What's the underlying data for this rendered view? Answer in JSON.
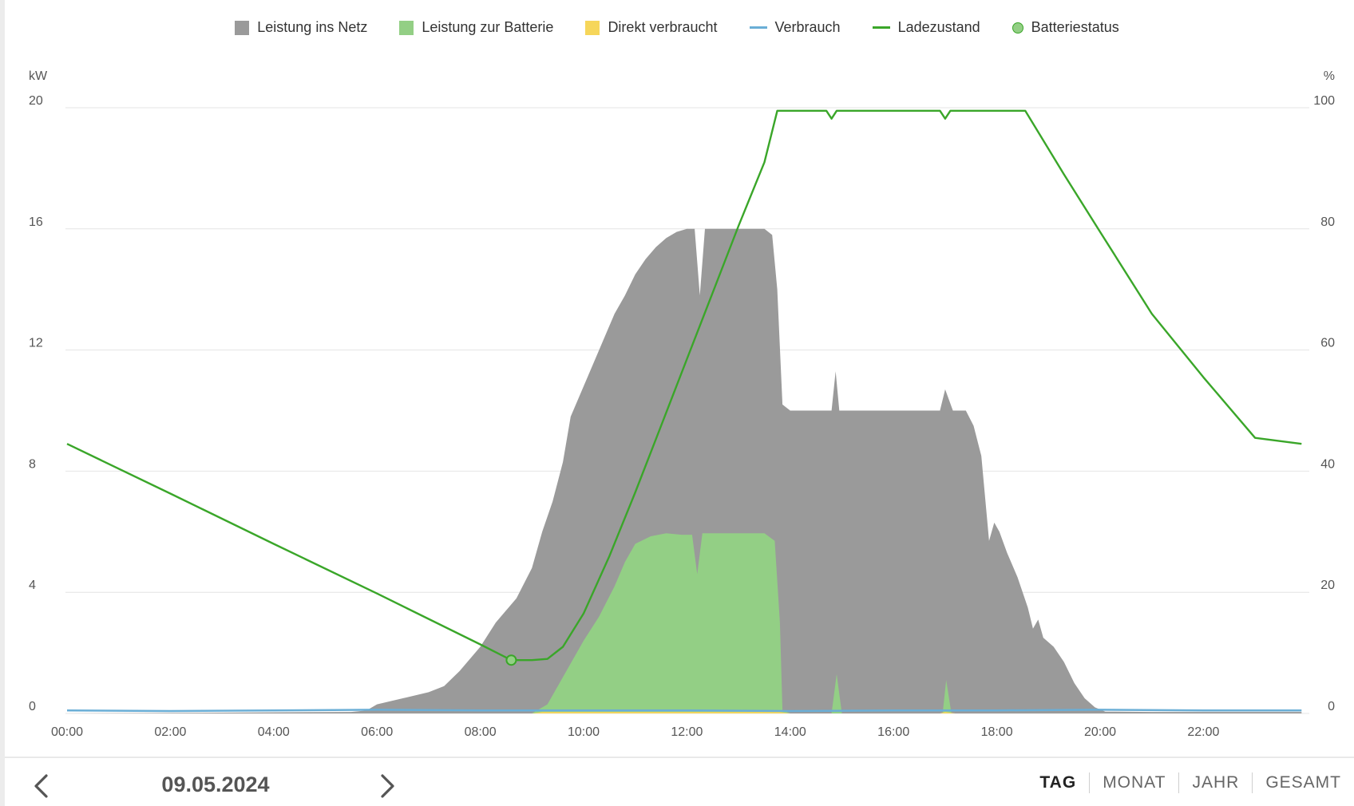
{
  "colors": {
    "grid_feed": "#9a9a9a",
    "battery_charge": "#93cf85",
    "self_consumed": "#f6d65a",
    "consumption": "#6aaed6",
    "state_of_charge": "#3aa629",
    "battery_status": "#93cf85",
    "gridline": "#e4e4e4"
  },
  "legend": [
    {
      "label": "Leistung ins Netz",
      "kind": "box",
      "color": "#9a9a9a"
    },
    {
      "label": "Leistung zur Batterie",
      "kind": "box",
      "color": "#93cf85"
    },
    {
      "label": "Direkt verbraucht",
      "kind": "box",
      "color": "#f6d65a"
    },
    {
      "label": "Verbrauch",
      "kind": "line",
      "color": "#6aaed6"
    },
    {
      "label": "Ladezustand",
      "kind": "line",
      "color": "#3aa629"
    },
    {
      "label": "Batteriestatus",
      "kind": "dot",
      "color": "#93cf85"
    }
  ],
  "chart_data": {
    "type": "area",
    "x_unit": "hours",
    "x_ticks": [
      "00:00",
      "02:00",
      "04:00",
      "06:00",
      "08:00",
      "10:00",
      "12:00",
      "14:00",
      "16:00",
      "18:00",
      "20:00",
      "22:00"
    ],
    "y_left": {
      "label": "kW",
      "range": [
        0,
        20
      ],
      "ticks": [
        "0",
        "4",
        "8",
        "12",
        "16",
        "20"
      ]
    },
    "y_right": {
      "label": "%",
      "range": [
        0,
        100
      ],
      "ticks": [
        "0",
        "20",
        "40",
        "60",
        "80",
        "100"
      ]
    },
    "grid": true,
    "legend_position": "top-center",
    "series": [
      {
        "name": "Leistung ins Netz",
        "axis": "left",
        "kind": "area",
        "points": [
          [
            0,
            0
          ],
          [
            5.5,
            0.05
          ],
          [
            5.8,
            0.1
          ],
          [
            6.0,
            0.3
          ],
          [
            6.5,
            0.5
          ],
          [
            7.0,
            0.7
          ],
          [
            7.3,
            0.9
          ],
          [
            7.6,
            1.4
          ],
          [
            8.0,
            2.2
          ],
          [
            8.3,
            3.0
          ],
          [
            8.7,
            3.8
          ],
          [
            9.0,
            4.8
          ],
          [
            9.2,
            6.0
          ],
          [
            9.4,
            7.0
          ],
          [
            9.6,
            8.3
          ],
          [
            9.75,
            9.8
          ],
          [
            10.0,
            10.8
          ],
          [
            10.3,
            12.0
          ],
          [
            10.6,
            13.2
          ],
          [
            10.8,
            13.8
          ],
          [
            11.0,
            14.5
          ],
          [
            11.2,
            15.0
          ],
          [
            11.4,
            15.4
          ],
          [
            11.6,
            15.7
          ],
          [
            11.8,
            15.9
          ],
          [
            12.0,
            16.0
          ],
          [
            12.15,
            16.0
          ],
          [
            12.25,
            13.8
          ],
          [
            12.35,
            16.0
          ],
          [
            12.8,
            16.0
          ],
          [
            13.5,
            16.0
          ],
          [
            13.65,
            15.8
          ],
          [
            13.75,
            14.0
          ],
          [
            13.85,
            10.2
          ],
          [
            14.0,
            10.0
          ],
          [
            14.8,
            10.0
          ],
          [
            14.88,
            11.3
          ],
          [
            14.95,
            10.0
          ],
          [
            16.9,
            10.0
          ],
          [
            17.0,
            10.7
          ],
          [
            17.15,
            10.0
          ],
          [
            17.4,
            10.0
          ],
          [
            17.55,
            9.5
          ],
          [
            17.7,
            8.5
          ],
          [
            17.85,
            5.7
          ],
          [
            17.95,
            6.3
          ],
          [
            18.05,
            6.0
          ],
          [
            18.2,
            5.3
          ],
          [
            18.4,
            4.5
          ],
          [
            18.6,
            3.5
          ],
          [
            18.7,
            2.8
          ],
          [
            18.8,
            3.1
          ],
          [
            18.9,
            2.5
          ],
          [
            19.1,
            2.2
          ],
          [
            19.3,
            1.7
          ],
          [
            19.5,
            1.0
          ],
          [
            19.7,
            0.5
          ],
          [
            19.9,
            0.2
          ],
          [
            20.1,
            0.06
          ],
          [
            21,
            0.05
          ],
          [
            23.9,
            0.05
          ]
        ]
      },
      {
        "name": "Leistung zur Batterie",
        "axis": "left",
        "kind": "area",
        "points": [
          [
            0,
            0
          ],
          [
            9.0,
            0
          ],
          [
            9.3,
            0.3
          ],
          [
            9.6,
            1.2
          ],
          [
            10.0,
            2.4
          ],
          [
            10.3,
            3.2
          ],
          [
            10.6,
            4.2
          ],
          [
            10.8,
            5.0
          ],
          [
            11.0,
            5.6
          ],
          [
            11.3,
            5.85
          ],
          [
            11.6,
            5.95
          ],
          [
            11.9,
            5.9
          ],
          [
            12.1,
            5.9
          ],
          [
            12.2,
            4.6
          ],
          [
            12.3,
            5.95
          ],
          [
            13.5,
            5.95
          ],
          [
            13.7,
            5.7
          ],
          [
            13.8,
            3.0
          ],
          [
            13.85,
            0.1
          ],
          [
            14.0,
            0
          ],
          [
            14.8,
            0
          ],
          [
            14.9,
            1.3
          ],
          [
            15.0,
            0
          ],
          [
            16.95,
            0
          ],
          [
            17.02,
            1.1
          ],
          [
            17.12,
            0
          ],
          [
            23.9,
            0
          ]
        ]
      },
      {
        "name": "Direkt verbraucht",
        "axis": "left",
        "kind": "area",
        "points": [
          [
            0,
            0
          ],
          [
            9.0,
            0
          ],
          [
            9.2,
            0.05
          ],
          [
            13.8,
            0.05
          ],
          [
            14.0,
            0
          ],
          [
            16.9,
            0
          ],
          [
            17.0,
            0.05
          ],
          [
            17.2,
            0
          ],
          [
            23.9,
            0
          ]
        ]
      },
      {
        "name": "Verbrauch",
        "axis": "left",
        "kind": "line",
        "points": [
          [
            0,
            0.1
          ],
          [
            2,
            0.08
          ],
          [
            4,
            0.1
          ],
          [
            6,
            0.12
          ],
          [
            8,
            0.1
          ],
          [
            10,
            0.1
          ],
          [
            12,
            0.1
          ],
          [
            14,
            0.08
          ],
          [
            16,
            0.1
          ],
          [
            18,
            0.1
          ],
          [
            20,
            0.12
          ],
          [
            22,
            0.1
          ],
          [
            23.9,
            0.1
          ]
        ]
      },
      {
        "name": "Ladezustand",
        "axis": "right",
        "kind": "line",
        "points": [
          [
            0,
            44.5
          ],
          [
            2,
            36.3
          ],
          [
            4,
            28.0
          ],
          [
            6,
            19.8
          ],
          [
            8,
            11.4
          ],
          [
            8.6,
            8.8
          ],
          [
            9.0,
            8.8
          ],
          [
            9.3,
            9.0
          ],
          [
            9.6,
            11.0
          ],
          [
            10.0,
            16.5
          ],
          [
            10.5,
            26.0
          ],
          [
            11.0,
            36.5
          ],
          [
            11.5,
            47.5
          ],
          [
            12.0,
            58.5
          ],
          [
            12.5,
            69.5
          ],
          [
            13.0,
            80.5
          ],
          [
            13.5,
            91.0
          ],
          [
            13.75,
            99.5
          ],
          [
            14.7,
            99.5
          ],
          [
            14.8,
            98.2
          ],
          [
            14.9,
            99.5
          ],
          [
            16.9,
            99.5
          ],
          [
            17.0,
            98.2
          ],
          [
            17.1,
            99.5
          ],
          [
            18.55,
            99.5
          ],
          [
            18.8,
            96.0
          ],
          [
            19.3,
            89.0
          ],
          [
            20.0,
            79.5
          ],
          [
            21.0,
            66.0
          ],
          [
            22.0,
            55.5
          ],
          [
            23.0,
            45.5
          ],
          [
            23.9,
            44.5
          ]
        ]
      }
    ],
    "markers": [
      {
        "name": "Batteriestatus",
        "x": 8.6,
        "y": 8.8,
        "axis": "right"
      }
    ]
  },
  "footer": {
    "date": "09.05.2024",
    "prev_icon": "chevron-left-icon",
    "next_icon": "chevron-right-icon",
    "tabs": [
      "TAG",
      "MONAT",
      "JAHR",
      "GESAMT"
    ],
    "active_tab": "TAG"
  }
}
